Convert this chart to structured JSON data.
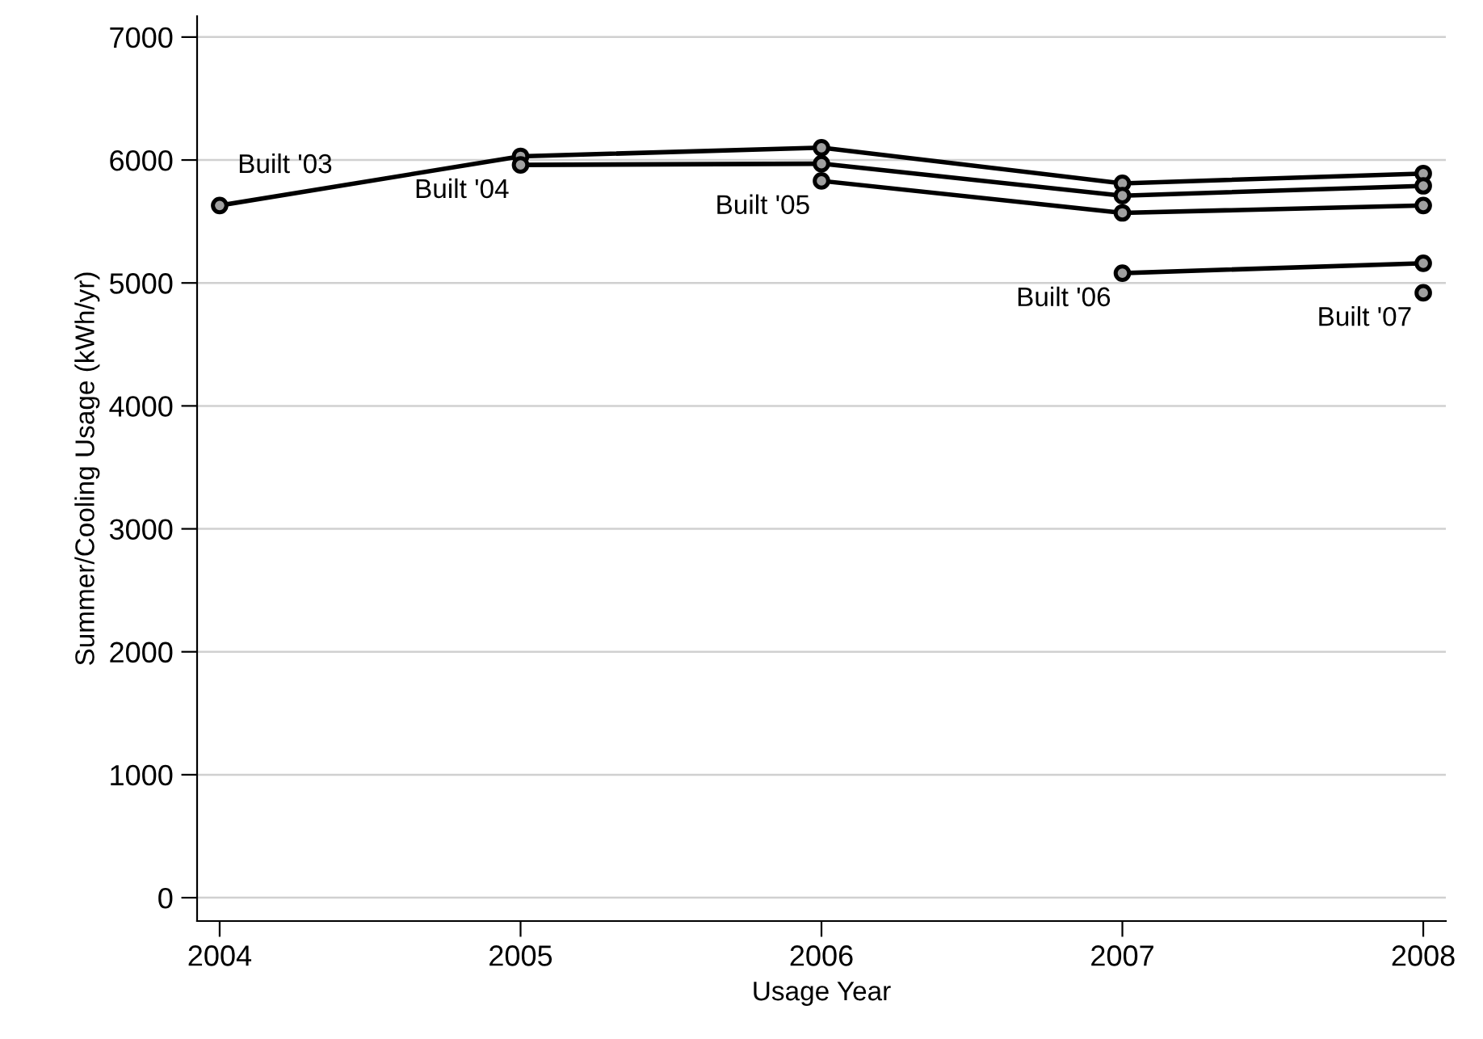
{
  "chart_data": {
    "type": "line",
    "xlabel": "Usage Year",
    "ylabel": "Summer/Cooling Usage (kWh/yr)",
    "series": [
      {
        "name": "Built '03",
        "color": "#000000",
        "x": [
          2004,
          2005,
          2006,
          2007,
          2008
        ],
        "values": [
          5630,
          6030,
          6100,
          5810,
          5890
        ]
      },
      {
        "name": "Built '04",
        "color": "#000000",
        "x": [
          2005,
          2006,
          2007,
          2008
        ],
        "values": [
          5960,
          5970,
          5710,
          5790
        ]
      },
      {
        "name": "Built '05",
        "color": "#000000",
        "x": [
          2006,
          2007,
          2008
        ],
        "values": [
          5830,
          5570,
          5630
        ]
      },
      {
        "name": "Built '06",
        "color": "#000000",
        "x": [
          2007,
          2008
        ],
        "values": [
          5080,
          5160
        ]
      },
      {
        "name": "Built '07",
        "color": "#000000",
        "x": [
          2008
        ],
        "values": [
          4920
        ]
      }
    ],
    "xlim": [
      2003.925,
      2008.075
    ],
    "xticks": [
      2004,
      2005,
      2006,
      2007,
      2008
    ],
    "ylim": [
      -190,
      7170
    ],
    "yticks": [
      0,
      1000,
      2000,
      3000,
      4000,
      5000,
      6000,
      7000
    ],
    "grid": "y",
    "marker": "circle",
    "line_style": "solid"
  }
}
